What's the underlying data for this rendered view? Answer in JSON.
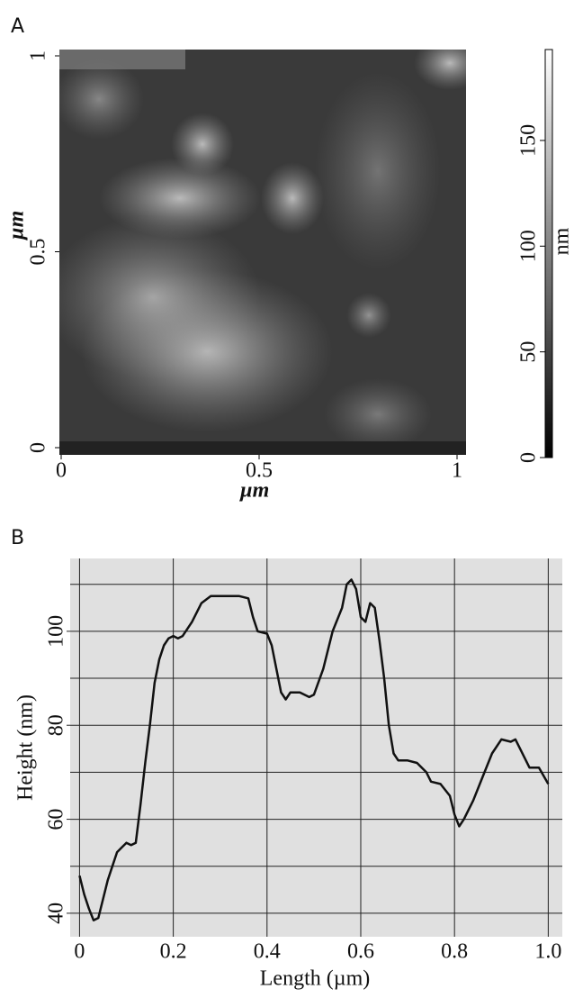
{
  "panel_labels": [
    "A",
    "B"
  ],
  "chart_data": [
    {
      "type": "image",
      "xlabel": "µm",
      "ylabel": "µm",
      "xlim": [
        0,
        1
      ],
      "ylim": [
        0,
        1
      ],
      "xticks": [
        0,
        0.5,
        1
      ],
      "yticks": [
        0,
        0.5,
        1
      ],
      "colorbar": {
        "label": "nm",
        "lim": [
          0,
          193
        ],
        "ticks": [
          0,
          50,
          100,
          150
        ]
      }
    },
    {
      "type": "line",
      "xlabel": "Length (µm)",
      "ylabel": "Height (nm)",
      "color": "#111111",
      "xlim": [
        -0.02,
        1.03
      ],
      "ylim": [
        35,
        115.5
      ],
      "xticks": [
        0,
        0.2,
        0.4,
        0.6,
        0.8,
        {
          "value": 1,
          "label": "1.0"
        }
      ],
      "yticks": [
        40,
        60,
        80,
        100
      ],
      "ygrid": [
        40,
        50,
        60,
        70,
        80,
        90,
        100,
        110
      ],
      "grid": true,
      "x": [
        0,
        0.01,
        0.02,
        0.03,
        0.04,
        0.05,
        0.06,
        0.07,
        0.08,
        0.09,
        0.1,
        0.11,
        0.12,
        0.13,
        0.14,
        0.15,
        0.16,
        0.17,
        0.18,
        0.19,
        0.2,
        0.21,
        0.22,
        0.24,
        0.26,
        0.28,
        0.3,
        0.32,
        0.34,
        0.36,
        0.37,
        0.38,
        0.4,
        0.41,
        0.42,
        0.43,
        0.44,
        0.45,
        0.47,
        0.49,
        0.5,
        0.52,
        0.54,
        0.56,
        0.57,
        0.58,
        0.59,
        0.6,
        0.61,
        0.62,
        0.63,
        0.64,
        0.65,
        0.66,
        0.67,
        0.68,
        0.7,
        0.72,
        0.74,
        0.75,
        0.77,
        0.79,
        0.8,
        0.81,
        0.82,
        0.84,
        0.86,
        0.88,
        0.9,
        0.92,
        0.93,
        0.94,
        0.96,
        0.98,
        1.0
      ],
      "values": [
        48,
        44,
        41,
        38.5,
        39,
        43,
        47,
        50,
        53,
        54,
        55,
        54.5,
        55,
        63,
        72,
        80,
        89,
        94,
        97,
        98.5,
        99,
        98.5,
        99,
        102,
        106,
        107.5,
        107.5,
        107.5,
        107.5,
        107,
        103,
        100,
        99.5,
        97,
        92,
        87,
        85.5,
        87,
        87,
        86,
        86.5,
        92,
        100,
        105,
        110,
        111,
        109,
        103,
        102,
        106,
        105,
        98,
        90,
        80,
        74,
        72.5,
        72.5,
        72,
        70,
        68,
        67.5,
        65,
        61,
        58.5,
        60,
        64,
        69,
        74,
        77,
        76.5,
        77,
        75,
        71,
        71,
        67.5
      ]
    }
  ]
}
